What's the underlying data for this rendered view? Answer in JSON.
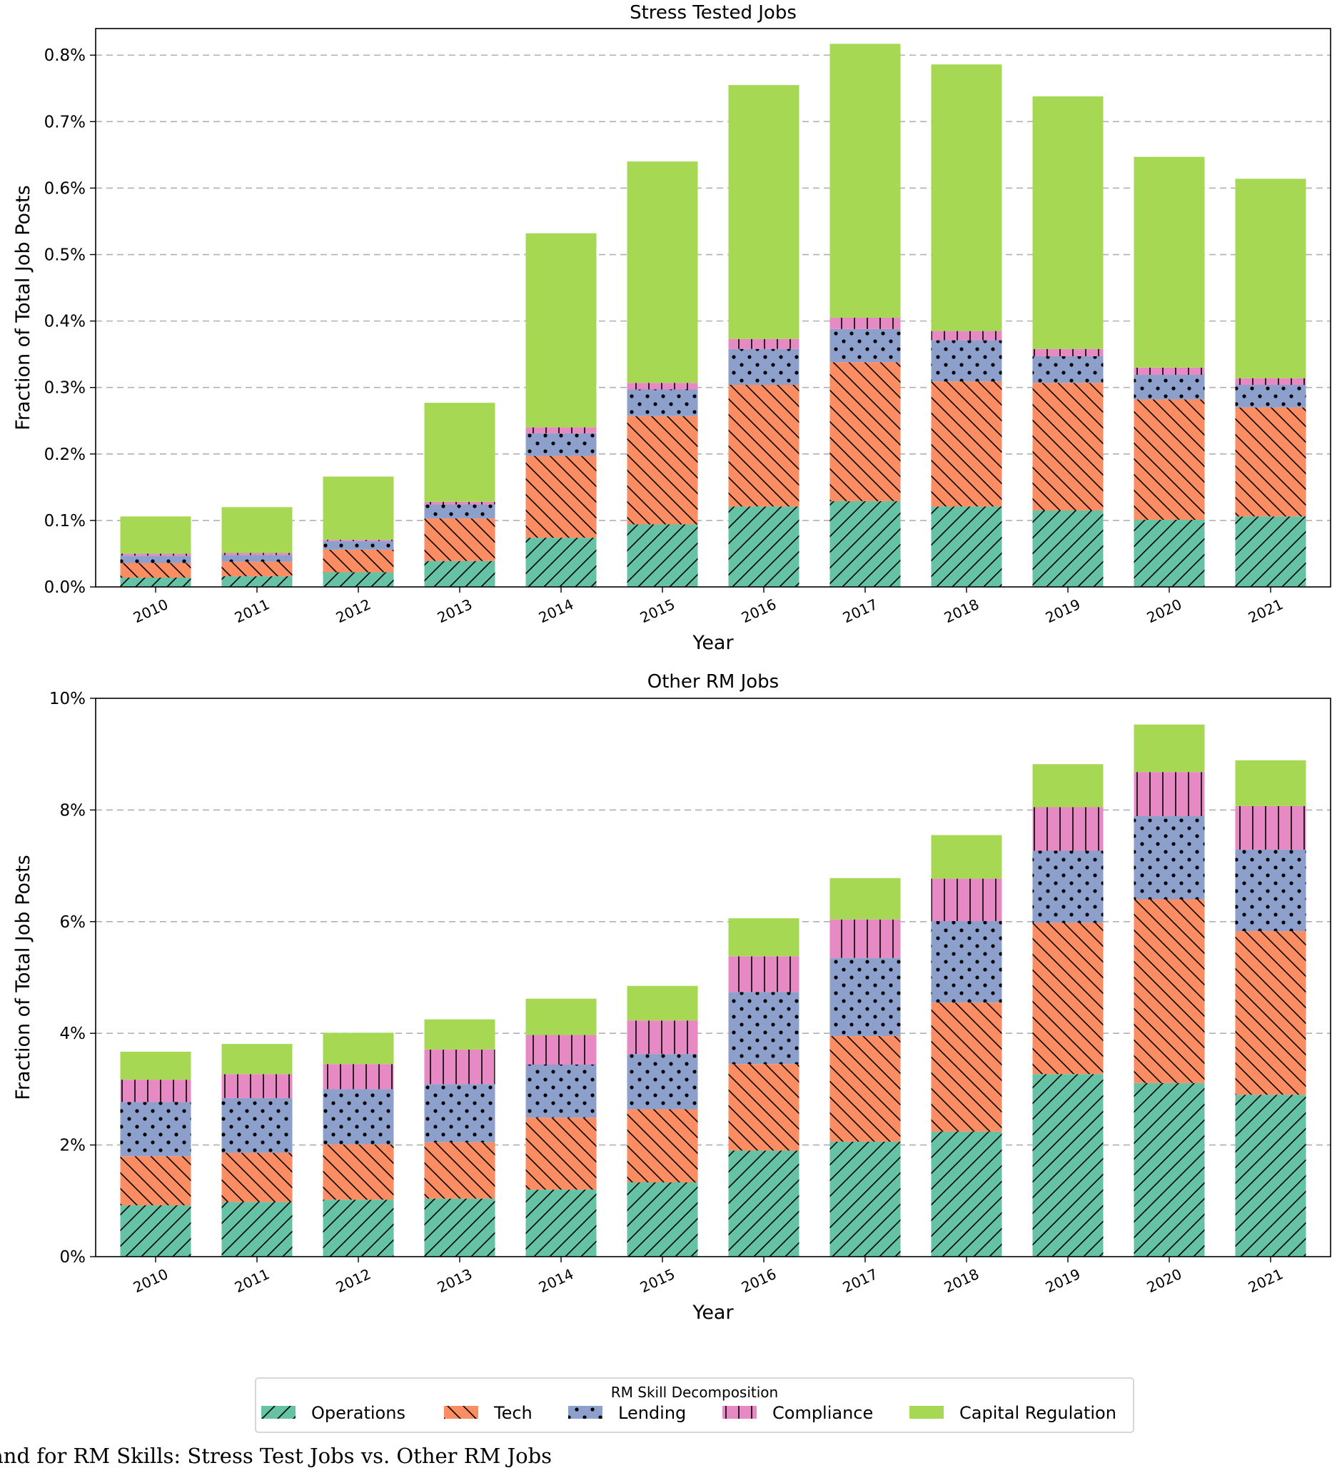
{
  "legend": {
    "title": "RM Skill Decomposition",
    "position": "bottom-center"
  },
  "caption": "mand for RM Skills: Stress Test Jobs vs. Other RM Jobs",
  "chart_data": [
    {
      "type": "bar",
      "stacked": true,
      "title": "Stress Tested Jobs",
      "xlabel": "Year",
      "ylabel": "Fraction of Total Job Posts",
      "ylim": [
        0,
        0.84
      ],
      "yticks": [
        0.0,
        0.1,
        0.2,
        0.3,
        0.4,
        0.5,
        0.6,
        0.7,
        0.8
      ],
      "ytick_labels": [
        "0.0%",
        "0.1%",
        "0.2%",
        "0.3%",
        "0.4%",
        "0.5%",
        "0.6%",
        "0.7%",
        "0.8%"
      ],
      "grid": "horizontal dashed",
      "categories": [
        "2010",
        "2011",
        "2012",
        "2013",
        "2014",
        "2015",
        "2016",
        "2017",
        "2018",
        "2019",
        "2020",
        "2021"
      ],
      "series": [
        {
          "name": "Operations",
          "color": "#66c2a5",
          "hatch": "forward-slash",
          "values": [
            0.014,
            0.016,
            0.022,
            0.039,
            0.074,
            0.094,
            0.121,
            0.129,
            0.121,
            0.115,
            0.101,
            0.106
          ]
        },
        {
          "name": "Tech",
          "color": "#fc8d62",
          "hatch": "back-slash",
          "values": [
            0.022,
            0.022,
            0.034,
            0.064,
            0.123,
            0.163,
            0.183,
            0.209,
            0.188,
            0.192,
            0.181,
            0.164
          ]
        },
        {
          "name": "Lending",
          "color": "#8da0cb",
          "hatch": "dots",
          "values": [
            0.011,
            0.01,
            0.013,
            0.021,
            0.034,
            0.04,
            0.054,
            0.05,
            0.062,
            0.04,
            0.037,
            0.034
          ]
        },
        {
          "name": "Compliance",
          "color": "#e78ac3",
          "hatch": "vertical",
          "values": [
            0.003,
            0.003,
            0.002,
            0.004,
            0.009,
            0.01,
            0.015,
            0.017,
            0.014,
            0.011,
            0.011,
            0.01
          ]
        },
        {
          "name": "Capital Regulation",
          "color": "#a6d854",
          "hatch": "none",
          "values": [
            0.056,
            0.069,
            0.095,
            0.149,
            0.292,
            0.333,
            0.382,
            0.412,
            0.401,
            0.38,
            0.317,
            0.3
          ]
        }
      ]
    },
    {
      "type": "bar",
      "stacked": true,
      "title": "Other RM Jobs",
      "xlabel": "Year",
      "ylabel": "Fraction of Total Job Posts",
      "ylim": [
        0,
        10
      ],
      "yticks": [
        0,
        2,
        4,
        6,
        8,
        10
      ],
      "ytick_labels": [
        "0%",
        "2%",
        "4%",
        "6%",
        "8%",
        "10%"
      ],
      "grid": "horizontal dashed",
      "categories": [
        "2010",
        "2011",
        "2012",
        "2013",
        "2014",
        "2015",
        "2016",
        "2017",
        "2018",
        "2019",
        "2020",
        "2021"
      ],
      "series": [
        {
          "name": "Operations",
          "color": "#66c2a5",
          "hatch": "forward-slash",
          "values": [
            0.92,
            0.98,
            1.02,
            1.04,
            1.2,
            1.33,
            1.9,
            2.06,
            2.24,
            3.27,
            3.11,
            2.9
          ]
        },
        {
          "name": "Tech",
          "color": "#fc8d62",
          "hatch": "back-slash",
          "values": [
            0.88,
            0.88,
            0.99,
            1.01,
            1.29,
            1.31,
            1.55,
            1.89,
            2.31,
            2.71,
            3.29,
            2.93
          ]
        },
        {
          "name": "Lending",
          "color": "#8da0cb",
          "hatch": "dots",
          "values": [
            0.97,
            0.98,
            0.99,
            1.04,
            0.95,
            0.99,
            1.29,
            1.4,
            1.46,
            1.29,
            1.49,
            1.46
          ]
        },
        {
          "name": "Compliance",
          "color": "#e78ac3",
          "hatch": "vertical",
          "values": [
            0.4,
            0.43,
            0.45,
            0.62,
            0.53,
            0.6,
            0.64,
            0.69,
            0.76,
            0.78,
            0.79,
            0.78
          ]
        },
        {
          "name": "Capital Regulation",
          "color": "#a6d854",
          "hatch": "none",
          "values": [
            0.5,
            0.54,
            0.56,
            0.54,
            0.65,
            0.62,
            0.68,
            0.74,
            0.78,
            0.77,
            0.85,
            0.82
          ]
        }
      ]
    }
  ]
}
